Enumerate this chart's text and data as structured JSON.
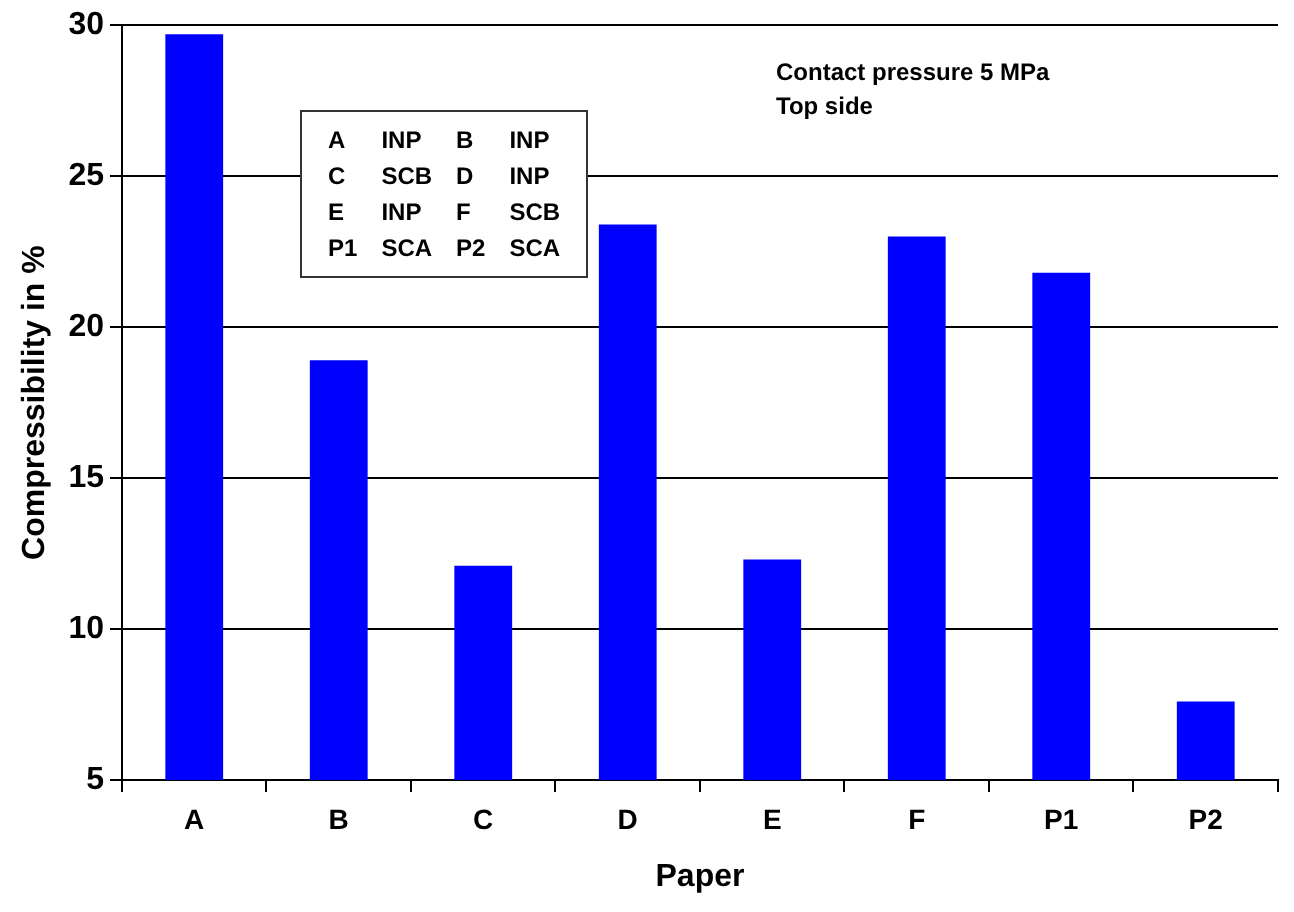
{
  "chart_data": {
    "type": "bar",
    "xlabel": "Paper",
    "ylabel": "Compressibility in %",
    "categories": [
      "A",
      "B",
      "C",
      "D",
      "E",
      "F",
      "P1",
      "P2"
    ],
    "values": [
      29.7,
      18.9,
      12.1,
      23.4,
      12.3,
      23.0,
      21.8,
      7.6
    ],
    "color": "#0000ff",
    "ylim": [
      5,
      30
    ],
    "yticks": [
      5,
      10,
      15,
      20,
      25,
      30
    ],
    "grid": "y",
    "annotations": [
      "Contact pressure 5 MPa",
      "Top side",
      "A INP",
      "B INP",
      "C SCB",
      "D INP",
      "E INP",
      "F SCB",
      "P1 SCA",
      "P2 SCA"
    ]
  }
}
